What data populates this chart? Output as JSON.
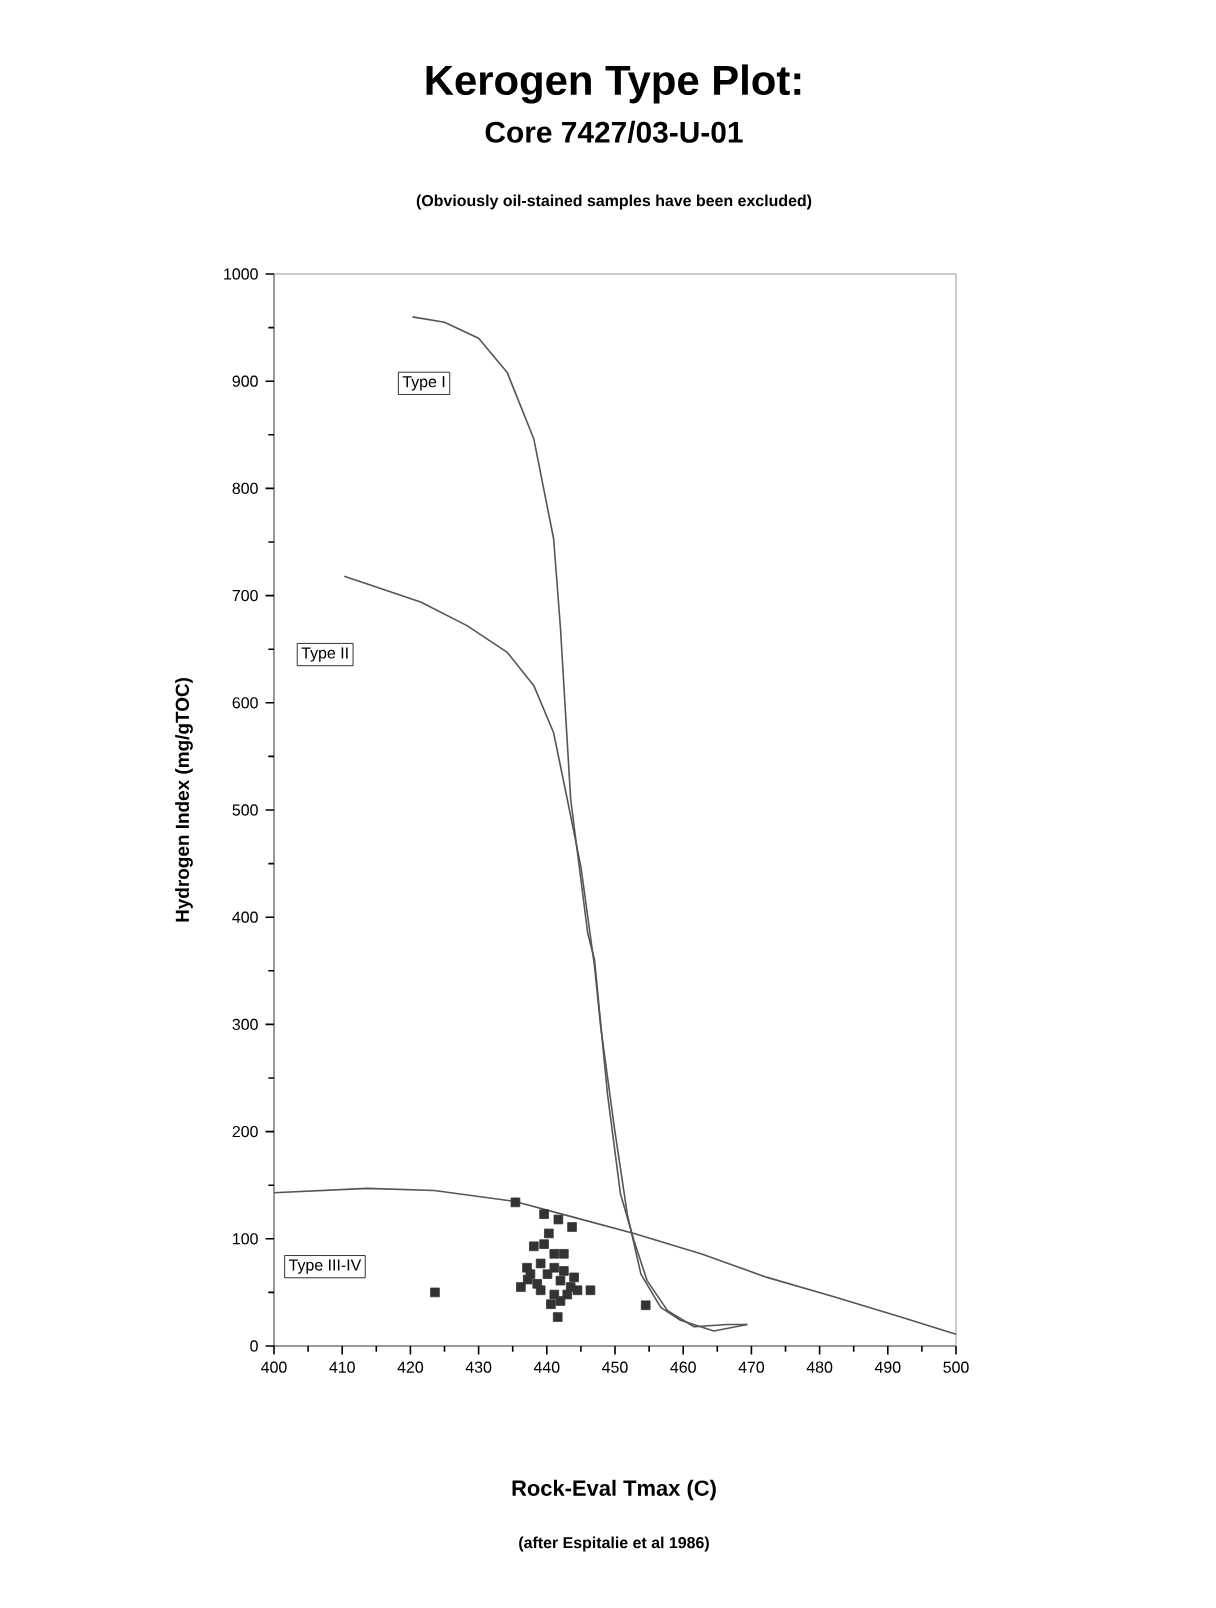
{
  "chart_data": {
    "type": "scatter",
    "title": "Kerogen Type Plot:",
    "subtitle": "Core 7427/03-U-01",
    "xlabel": "Rock-Eval Tmax (C)",
    "ylabel": "Hydrogen Index (mg/gTOC)",
    "xlim": [
      400,
      500
    ],
    "ylim": [
      0,
      1000
    ],
    "xticks": [
      400,
      410,
      420,
      430,
      440,
      450,
      460,
      470,
      480,
      490,
      500
    ],
    "yticks": [
      0,
      100,
      200,
      300,
      400,
      500,
      600,
      700,
      800,
      900,
      1000
    ],
    "annotations": [
      "(Obviously oil-stained samples have been excluded)",
      "(after Espitalie et al 1986)",
      {
        "text": "Type I",
        "x": 422,
        "y": 898
      },
      {
        "text": "Type II",
        "x": 407.5,
        "y": 645
      },
      "Type III-IV"
    ],
    "series": [
      {
        "type": "line",
        "color": "#555555",
        "marker": "none",
        "x": [
          420.3,
          425,
          430,
          434.2,
          438.1,
          441,
          442,
          443.5,
          446,
          447,
          448.9,
          450.8,
          452.8,
          454.7,
          457.7,
          461.6,
          466.5,
          469.4
        ],
        "values": [
          960,
          955,
          940,
          908,
          846,
          753,
          670,
          510,
          385,
          360,
          235,
          142,
          98,
          61,
          33,
          18,
          20,
          20
        ]
      },
      {
        "type": "line",
        "color": "#555555",
        "marker": "none",
        "x": [
          410.3,
          421.5,
          428.3,
          434.2,
          438.1,
          441,
          443,
          445,
          447,
          447.9,
          449.9,
          451.8,
          453.8,
          456.7,
          459.6,
          464.5,
          469.4
        ],
        "values": [
          718,
          694,
          672,
          647,
          616,
          572,
          510,
          447,
          354,
          298,
          204,
          123,
          67,
          36,
          24,
          14,
          20
        ]
      },
      {
        "type": "line",
        "color": "#555555",
        "marker": "none",
        "x": [
          400,
          413.7,
          423.5,
          435.2,
          444,
          452.8,
          462.6,
          472.3,
          482.1,
          491.9,
          500
        ],
        "values": [
          143,
          147,
          145,
          135,
          120,
          105,
          86,
          64,
          46,
          27,
          11
        ]
      },
      {
        "color": "#333333",
        "marker": "square",
        "x": [
          435.4,
          439.6,
          441.7,
          443.7,
          423.6,
          454.5,
          440.3,
          438.1,
          439.6,
          441.1,
          442.5,
          437.1,
          439.1,
          441.1,
          442.5,
          440.1,
          437.2,
          436.2,
          442,
          443.5,
          444.5,
          446.4,
          439.1,
          441.1,
          443,
          440.6,
          441.6,
          437.6,
          438.6,
          444,
          442
        ],
        "values": [
          134,
          123,
          118,
          111,
          50,
          38,
          105,
          93,
          95,
          86,
          86,
          73,
          77,
          73,
          70,
          67,
          62,
          55,
          61,
          55,
          52,
          52,
          52,
          48,
          48,
          39,
          27,
          67,
          58,
          64,
          42
        ]
      }
    ]
  }
}
